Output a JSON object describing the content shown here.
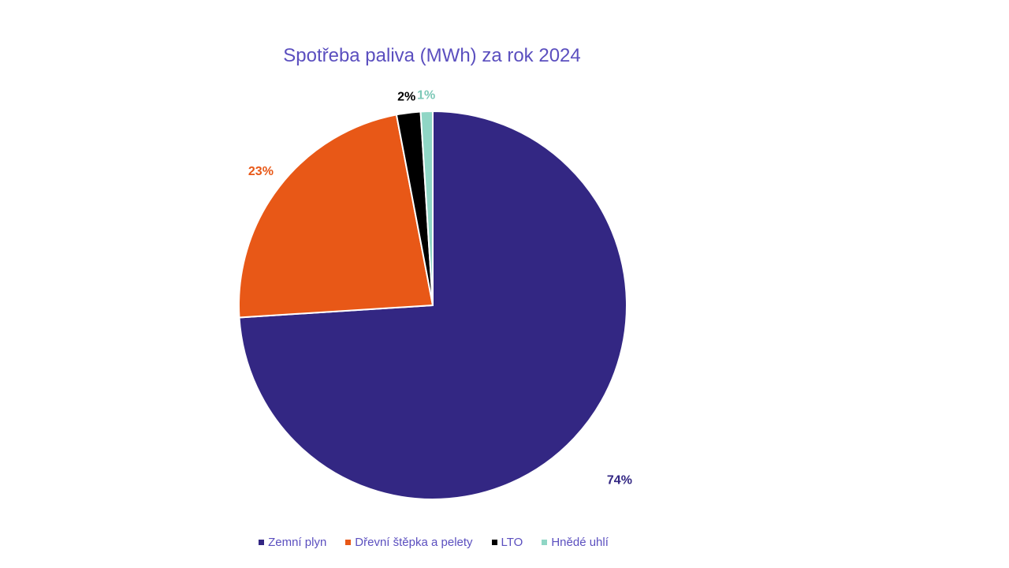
{
  "chart_data": {
    "type": "pie",
    "title": "Spotřeba paliva (MWh) za rok 2024",
    "categories": [
      "Zemní plyn",
      "Dřevní štěpka a pelety",
      "LTO",
      "Hnědé uhlí"
    ],
    "values": [
      74,
      23,
      2,
      1
    ],
    "data_labels": [
      "74%",
      "23%",
      "2%",
      "1%"
    ],
    "colors": [
      "#332783",
      "#e85817",
      "#000000",
      "#8fd6c5"
    ],
    "label_colors": [
      "#332783",
      "#e85817",
      "#000000",
      "#7cc8b7"
    ],
    "start_angle": "12 o'clock",
    "direction": "clockwise",
    "legend_position": "bottom"
  }
}
